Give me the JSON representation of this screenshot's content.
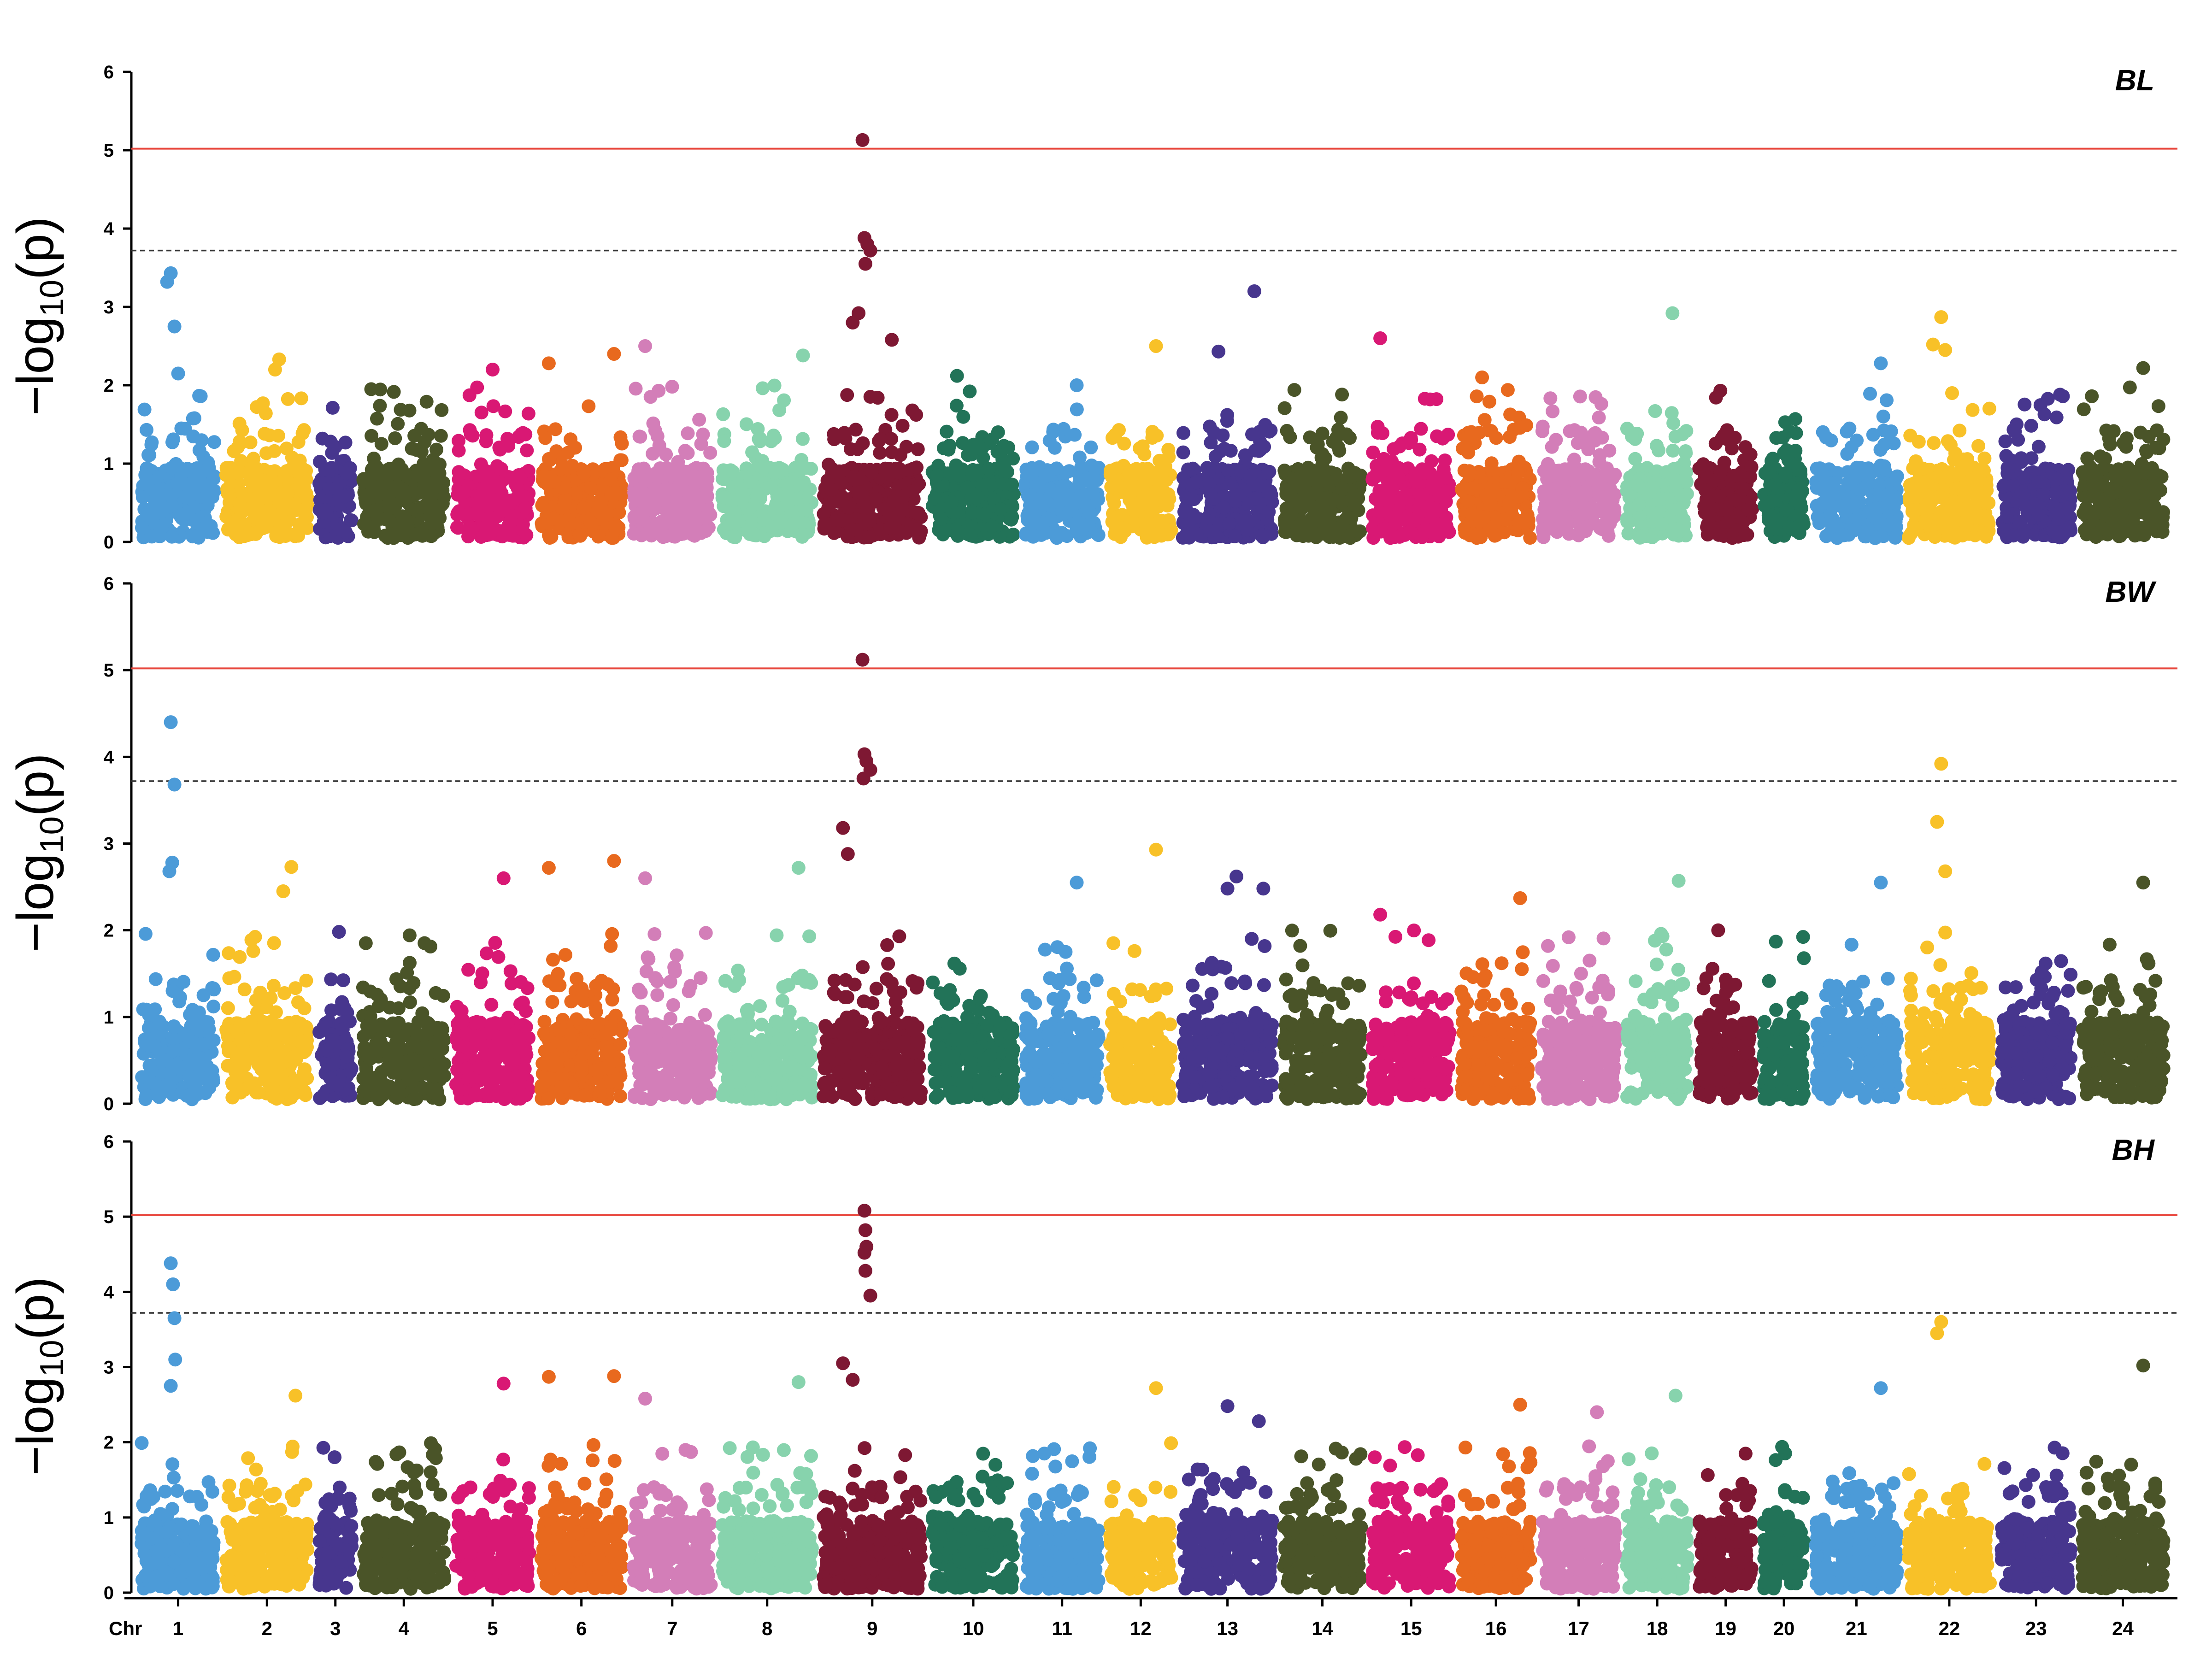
{
  "chart_data": {
    "type": "scatter",
    "subtype": "manhattan",
    "x_axis_title": "Chr",
    "y_axis_label": {
      "main": "-log",
      "subscript": "10",
      "tail": "(p)"
    },
    "ylim": [
      0,
      6
    ],
    "yticks": [
      "0",
      "1",
      "2",
      "3",
      "4",
      "5",
      "6"
    ],
    "thresholds": {
      "significant": {
        "value": 5.02,
        "color": "#e8463c",
        "style": "solid"
      },
      "suggestive": {
        "value": 3.72,
        "color": "#333333",
        "style": "dashed"
      }
    },
    "chromosomes": [
      {
        "label": "1",
        "length": 1.8,
        "color": "#4c9bd8"
      },
      {
        "label": "2",
        "length": 2.0,
        "color": "#f8c128"
      },
      {
        "label": "3",
        "length": 0.8,
        "color": "#47368e"
      },
      {
        "label": "4",
        "length": 2.0,
        "color": "#4a5428"
      },
      {
        "label": "5",
        "length": 1.8,
        "color": "#d91874"
      },
      {
        "label": "6",
        "length": 2.0,
        "color": "#e8691e"
      },
      {
        "label": "7",
        "length": 1.9,
        "color": "#d37eb8"
      },
      {
        "label": "8",
        "length": 2.2,
        "color": "#87d3ad"
      },
      {
        "label": "9",
        "length": 2.4,
        "color": "#7e1833"
      },
      {
        "label": "10",
        "length": 2.0,
        "color": "#227358"
      },
      {
        "label": "11",
        "length": 1.8,
        "color": "#4c9bd8"
      },
      {
        "label": "12",
        "length": 1.5,
        "color": "#f8c128"
      },
      {
        "label": "13",
        "length": 2.2,
        "color": "#47368e"
      },
      {
        "label": "14",
        "length": 1.9,
        "color": "#4a5428"
      },
      {
        "label": "15",
        "length": 1.9,
        "color": "#d91874"
      },
      {
        "label": "16",
        "length": 1.7,
        "color": "#e8691e"
      },
      {
        "label": "17",
        "length": 1.8,
        "color": "#d37eb8"
      },
      {
        "label": "18",
        "length": 1.5,
        "color": "#87d3ad"
      },
      {
        "label": "19",
        "length": 1.3,
        "color": "#7e1833"
      },
      {
        "label": "20",
        "length": 1.0,
        "color": "#227358"
      },
      {
        "label": "21",
        "length": 2.0,
        "color": "#4c9bd8"
      },
      {
        "label": "22",
        "length": 2.0,
        "color": "#f8c128"
      },
      {
        "label": "23",
        "length": 1.7,
        "color": "#47368e"
      },
      {
        "label": "24",
        "length": 2.0,
        "color": "#4a5428"
      }
    ],
    "panels": [
      {
        "trait": "BL",
        "highlights": [
          {
            "chr": "1",
            "pos": 0.4,
            "y": 3.43
          },
          {
            "chr": "1",
            "pos": 0.35,
            "y": 3.32
          },
          {
            "chr": "1",
            "pos": 0.45,
            "y": 2.75
          },
          {
            "chr": "1",
            "pos": 0.5,
            "y": 2.15
          },
          {
            "chr": "2",
            "pos": 0.65,
            "y": 2.33
          },
          {
            "chr": "2",
            "pos": 0.6,
            "y": 2.2
          },
          {
            "chr": "4",
            "pos": 0.1,
            "y": 1.95
          },
          {
            "chr": "5",
            "pos": 0.5,
            "y": 2.2
          },
          {
            "chr": "6",
            "pos": 0.1,
            "y": 2.28
          },
          {
            "chr": "6",
            "pos": 0.9,
            "y": 2.4
          },
          {
            "chr": "7",
            "pos": 0.15,
            "y": 2.5
          },
          {
            "chr": "8",
            "pos": 0.9,
            "y": 2.38
          },
          {
            "chr": "9",
            "pos": 0.4,
            "y": 5.13
          },
          {
            "chr": "9",
            "pos": 0.42,
            "y": 3.88
          },
          {
            "chr": "9",
            "pos": 0.45,
            "y": 3.8
          },
          {
            "chr": "9",
            "pos": 0.48,
            "y": 3.72
          },
          {
            "chr": "9",
            "pos": 0.43,
            "y": 3.55
          },
          {
            "chr": "9",
            "pos": 0.36,
            "y": 2.92
          },
          {
            "chr": "9",
            "pos": 0.3,
            "y": 2.8
          },
          {
            "chr": "9",
            "pos": 0.7,
            "y": 2.58
          },
          {
            "chr": "10",
            "pos": 0.3,
            "y": 2.12
          },
          {
            "chr": "11",
            "pos": 0.7,
            "y": 2.0
          },
          {
            "chr": "12",
            "pos": 0.75,
            "y": 2.5
          },
          {
            "chr": "13",
            "pos": 0.4,
            "y": 2.43
          },
          {
            "chr": "13",
            "pos": 0.8,
            "y": 3.2
          },
          {
            "chr": "15",
            "pos": 0.1,
            "y": 2.6
          },
          {
            "chr": "16",
            "pos": 0.3,
            "y": 2.1
          },
          {
            "chr": "18",
            "pos": 0.75,
            "y": 2.92
          },
          {
            "chr": "19",
            "pos": 0.4,
            "y": 1.93
          },
          {
            "chr": "21",
            "pos": 0.8,
            "y": 2.28
          },
          {
            "chr": "22",
            "pos": 0.4,
            "y": 2.87
          },
          {
            "chr": "22",
            "pos": 0.3,
            "y": 2.52
          },
          {
            "chr": "22",
            "pos": 0.45,
            "y": 2.45
          },
          {
            "chr": "24",
            "pos": 0.75,
            "y": 2.22
          }
        ]
      },
      {
        "trait": "BW",
        "highlights": [
          {
            "chr": "1",
            "pos": 0.4,
            "y": 4.4
          },
          {
            "chr": "1",
            "pos": 0.45,
            "y": 3.68
          },
          {
            "chr": "1",
            "pos": 0.42,
            "y": 2.78
          },
          {
            "chr": "1",
            "pos": 0.38,
            "y": 2.68
          },
          {
            "chr": "2",
            "pos": 0.8,
            "y": 2.73
          },
          {
            "chr": "2",
            "pos": 0.7,
            "y": 2.45
          },
          {
            "chr": "5",
            "pos": 0.65,
            "y": 2.6
          },
          {
            "chr": "6",
            "pos": 0.1,
            "y": 2.72
          },
          {
            "chr": "6",
            "pos": 0.9,
            "y": 2.8
          },
          {
            "chr": "7",
            "pos": 0.15,
            "y": 2.6
          },
          {
            "chr": "8",
            "pos": 0.85,
            "y": 2.72
          },
          {
            "chr": "9",
            "pos": 0.4,
            "y": 5.12
          },
          {
            "chr": "9",
            "pos": 0.42,
            "y": 4.03
          },
          {
            "chr": "9",
            "pos": 0.44,
            "y": 3.95
          },
          {
            "chr": "9",
            "pos": 0.48,
            "y": 3.85
          },
          {
            "chr": "9",
            "pos": 0.41,
            "y": 3.75
          },
          {
            "chr": "9",
            "pos": 0.2,
            "y": 3.18
          },
          {
            "chr": "9",
            "pos": 0.25,
            "y": 2.88
          },
          {
            "chr": "11",
            "pos": 0.7,
            "y": 2.55
          },
          {
            "chr": "12",
            "pos": 0.75,
            "y": 2.93
          },
          {
            "chr": "13",
            "pos": 0.6,
            "y": 2.62
          },
          {
            "chr": "13",
            "pos": 0.5,
            "y": 2.48
          },
          {
            "chr": "13",
            "pos": 0.9,
            "y": 2.48
          },
          {
            "chr": "15",
            "pos": 0.1,
            "y": 2.18
          },
          {
            "chr": "16",
            "pos": 0.85,
            "y": 2.37
          },
          {
            "chr": "18",
            "pos": 0.85,
            "y": 2.57
          },
          {
            "chr": "21",
            "pos": 0.8,
            "y": 2.55
          },
          {
            "chr": "22",
            "pos": 0.4,
            "y": 3.92
          },
          {
            "chr": "22",
            "pos": 0.35,
            "y": 3.25
          },
          {
            "chr": "22",
            "pos": 0.45,
            "y": 2.68
          },
          {
            "chr": "24",
            "pos": 0.75,
            "y": 2.55
          }
        ]
      },
      {
        "trait": "BH",
        "highlights": [
          {
            "chr": "1",
            "pos": 0.4,
            "y": 4.38
          },
          {
            "chr": "1",
            "pos": 0.43,
            "y": 4.1
          },
          {
            "chr": "1",
            "pos": 0.45,
            "y": 3.65
          },
          {
            "chr": "1",
            "pos": 0.46,
            "y": 3.1
          },
          {
            "chr": "1",
            "pos": 0.4,
            "y": 2.75
          },
          {
            "chr": "2",
            "pos": 0.85,
            "y": 2.62
          },
          {
            "chr": "5",
            "pos": 0.65,
            "y": 2.78
          },
          {
            "chr": "6",
            "pos": 0.1,
            "y": 2.87
          },
          {
            "chr": "6",
            "pos": 0.9,
            "y": 2.88
          },
          {
            "chr": "7",
            "pos": 0.15,
            "y": 2.58
          },
          {
            "chr": "8",
            "pos": 0.85,
            "y": 2.8
          },
          {
            "chr": "9",
            "pos": 0.42,
            "y": 5.08
          },
          {
            "chr": "9",
            "pos": 0.43,
            "y": 4.82
          },
          {
            "chr": "9",
            "pos": 0.44,
            "y": 4.6
          },
          {
            "chr": "9",
            "pos": 0.42,
            "y": 4.52
          },
          {
            "chr": "9",
            "pos": 0.43,
            "y": 4.28
          },
          {
            "chr": "9",
            "pos": 0.48,
            "y": 3.95
          },
          {
            "chr": "9",
            "pos": 0.2,
            "y": 3.05
          },
          {
            "chr": "9",
            "pos": 0.3,
            "y": 2.83
          },
          {
            "chr": "12",
            "pos": 0.75,
            "y": 2.72
          },
          {
            "chr": "13",
            "pos": 0.5,
            "y": 2.48
          },
          {
            "chr": "13",
            "pos": 0.85,
            "y": 2.28
          },
          {
            "chr": "16",
            "pos": 0.85,
            "y": 2.5
          },
          {
            "chr": "17",
            "pos": 0.75,
            "y": 2.4
          },
          {
            "chr": "18",
            "pos": 0.8,
            "y": 2.62
          },
          {
            "chr": "21",
            "pos": 0.8,
            "y": 2.72
          },
          {
            "chr": "22",
            "pos": 0.4,
            "y": 3.6
          },
          {
            "chr": "22",
            "pos": 0.35,
            "y": 3.45
          },
          {
            "chr": "24",
            "pos": 0.75,
            "y": 3.02
          }
        ]
      }
    ]
  }
}
